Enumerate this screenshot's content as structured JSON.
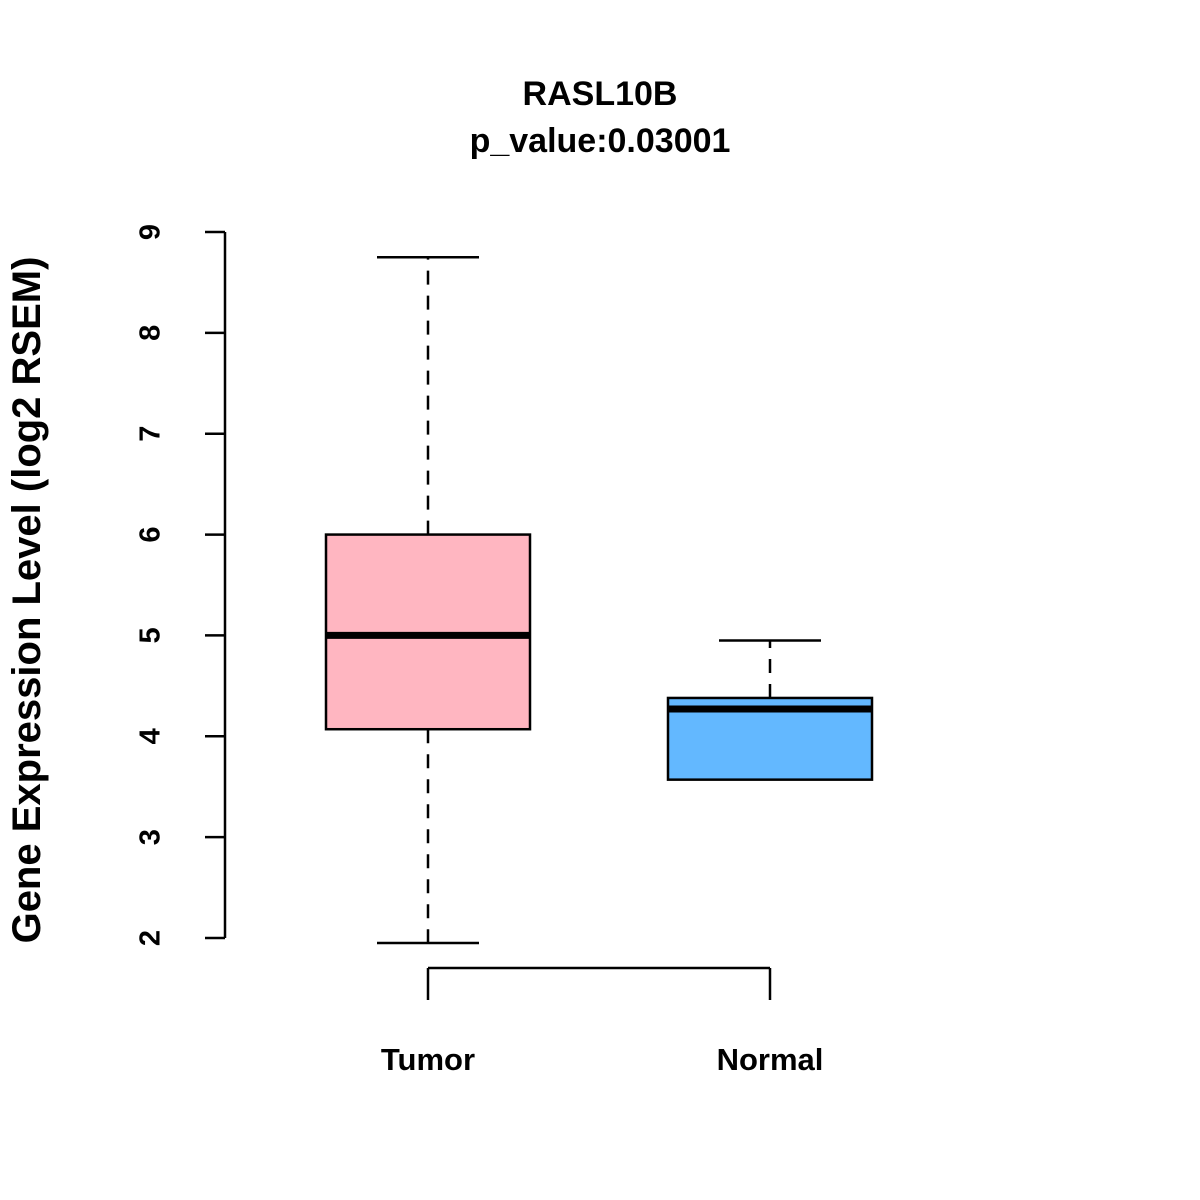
{
  "chart_data": {
    "type": "boxplot",
    "title": "RASL10B",
    "subtitle": "p_value:0.03001",
    "ylabel": "Gene Expression Level (log2 RSEM)",
    "xlabel": "",
    "ylim": [
      2,
      9
    ],
    "yticks": [
      2,
      3,
      4,
      5,
      6,
      7,
      8,
      9
    ],
    "grid": false,
    "legend": "none",
    "axis_color": "#000000",
    "categories": [
      "Tumor",
      "Normal"
    ],
    "series": [
      {
        "name": "Tumor",
        "fill": "#FFB6C1",
        "whisker_low": 1.95,
        "q1": 4.07,
        "median": 5.0,
        "q3": 6.0,
        "whisker_high": 8.75
      },
      {
        "name": "Normal",
        "fill": "#63B8FF",
        "whisker_low": 3.57,
        "q1": 3.57,
        "median": 4.27,
        "q3": 4.38,
        "whisker_high": 4.95
      }
    ]
  }
}
